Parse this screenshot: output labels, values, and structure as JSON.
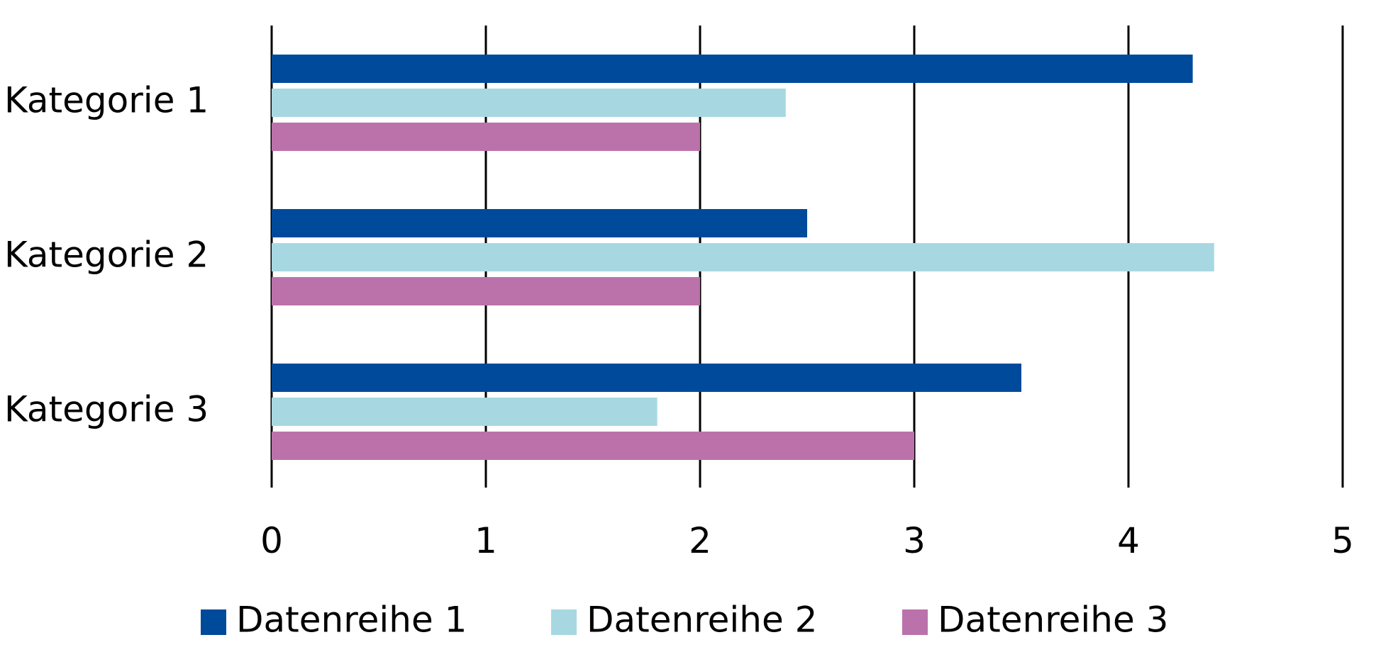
{
  "chart_data": {
    "type": "bar",
    "orientation": "horizontal",
    "categories": [
      "Kategorie 1",
      "Kategorie 2",
      "Kategorie 3"
    ],
    "series": [
      {
        "name": "Datenreihe 1",
        "color": "#004A9B",
        "values": [
          4.3,
          2.5,
          3.5
        ]
      },
      {
        "name": "Datenreihe 2",
        "color": "#A7D8E2",
        "values": [
          2.4,
          4.4,
          1.8
        ]
      },
      {
        "name": "Datenreihe 3",
        "color": "#BB72AA",
        "values": [
          2.0,
          2.0,
          3.0
        ]
      }
    ],
    "xlim": [
      0,
      5
    ],
    "xticks": [
      "0",
      "1",
      "2",
      "3",
      "4",
      "5"
    ],
    "grid": true,
    "legend": "bottom"
  }
}
